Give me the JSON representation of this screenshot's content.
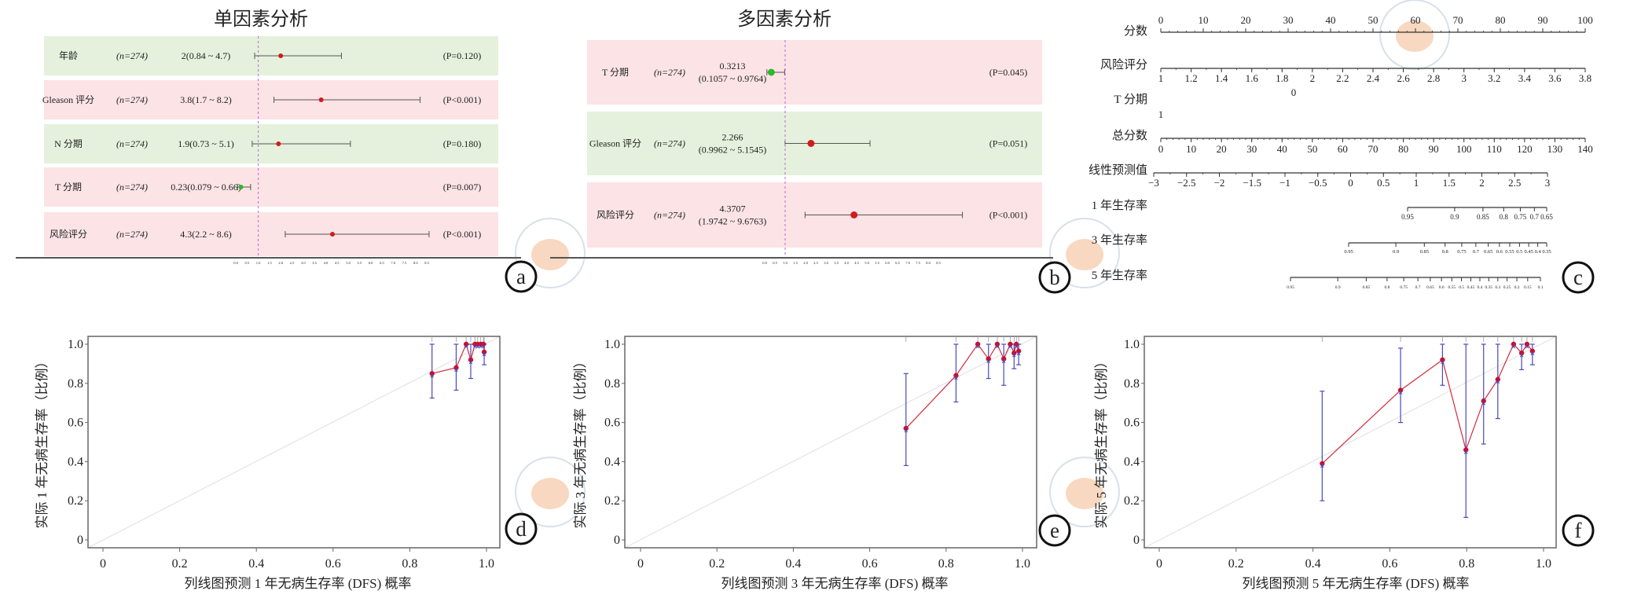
{
  "panel_labels": [
    "a",
    "b",
    "c",
    "d",
    "e",
    "f"
  ],
  "chart_data": [
    {
      "type": "forest",
      "id": "a",
      "title": "单因素分析",
      "reference": 1,
      "axis_ticks": [
        "0.0",
        "0.5",
        "1.0",
        "1.5",
        "2.0",
        "2.5",
        "3.0",
        "3.5",
        "4.0",
        "4.5",
        "5.0",
        "5.5",
        "6.0",
        "6.5",
        "7.0",
        "7.5",
        "8.0",
        "8.5"
      ],
      "rows": [
        {
          "label": "年龄",
          "n": "(n=274)",
          "estimate": "2(0.84 ~ 4.7)",
          "est": 2,
          "lo": 0.84,
          "hi": 4.7,
          "p": "(P=0.120)",
          "band": "#e5f1dc",
          "marker": "#d01c1c"
        },
        {
          "label": "Gleason 评分",
          "n": "(n=274)",
          "estimate": "3.8(1.7 ~ 8.2)",
          "est": 3.8,
          "lo": 1.7,
          "hi": 8.2,
          "p": "(P<0.001)",
          "band": "#fce3e5",
          "marker": "#d01c1c"
        },
        {
          "label": "N 分期",
          "n": "(n=274)",
          "estimate": "1.9(0.73 ~ 5.1)",
          "est": 1.9,
          "lo": 0.73,
          "hi": 5.1,
          "p": "(P=0.180)",
          "band": "#e5f1dc",
          "marker": "#d01c1c"
        },
        {
          "label": "T 分期",
          "n": "(n=274)",
          "estimate": "0.23(0.079 ~ 0.66)",
          "est": 0.23,
          "lo": 0.079,
          "hi": 0.66,
          "p": "(P=0.007)",
          "band": "#fce3e5",
          "marker": "#2db82d"
        },
        {
          "label": "风险评分",
          "n": "(n=274)",
          "estimate": "4.3(2.2 ~ 8.6)",
          "est": 4.3,
          "lo": 2.2,
          "hi": 8.6,
          "p": "(P<0.001)",
          "band": "#fce3e5",
          "marker": "#d01c1c"
        }
      ]
    },
    {
      "type": "forest",
      "id": "b",
      "title": "多因素分析",
      "reference": 1,
      "axis_ticks": [
        "0.0",
        "0.5",
        "1.0",
        "1.5",
        "2.0",
        "2.5",
        "3.0",
        "3.5",
        "4.0",
        "4.5",
        "5.0",
        "5.5",
        "6.0",
        "6.5",
        "7.0",
        "7.5",
        "8.0",
        "8.5"
      ],
      "rows": [
        {
          "label": "T 分期",
          "n": "(n=274)",
          "estimate": "0.3213",
          "ci": "(0.1057 ~ 0.9764)",
          "est": 0.3213,
          "lo": 0.1057,
          "hi": 0.9764,
          "p": "(P=0.045)",
          "band": "#fce3e5",
          "marker": "#2db82d"
        },
        {
          "label": "Gleason 评分",
          "n": "(n=274)",
          "estimate": "2.266",
          "ci": "(0.9962 ~ 5.1545)",
          "est": 2.266,
          "lo": 0.9962,
          "hi": 5.1545,
          "p": "(P=0.051)",
          "band": "#e5f1dc",
          "marker": "#d01c1c"
        },
        {
          "label": "风险评分",
          "n": "(n=274)",
          "estimate": "4.3707",
          "ci": "(1.9742 ~ 9.6763)",
          "est": 4.3707,
          "lo": 1.9742,
          "hi": 9.6763,
          "p": "(P<0.001)",
          "band": "#fce3e5",
          "marker": "#d01c1c"
        }
      ]
    },
    {
      "type": "nomogram",
      "id": "c",
      "scales": [
        {
          "label": "分数",
          "kind": "linear",
          "min": 0,
          "max": 100,
          "minor_step": 2,
          "ticks": [
            "0",
            "10",
            "20",
            "30",
            "40",
            "50",
            "60",
            "70",
            "80",
            "90",
            "100"
          ]
        },
        {
          "label": "风险评分",
          "kind": "linear",
          "min": 1,
          "max": 3.8,
          "minor_step": 0.1,
          "ticks": [
            "1",
            "1.2",
            "1.4",
            "1.6",
            "1.8",
            "2",
            "2.2",
            "2.4",
            "2.6",
            "2.8",
            "3",
            "3.2",
            "3.4",
            "3.6",
            "3.8"
          ]
        },
        {
          "label": "T 分期",
          "kind": "categorical",
          "levels": [
            {
              "label": "0",
              "points": 31.3
            },
            {
              "label": "1",
              "points": 0
            }
          ]
        },
        {
          "label": "总分数",
          "kind": "linear",
          "min": 0,
          "max": 140,
          "minor_step": 2,
          "ticks": [
            "0",
            "10",
            "20",
            "30",
            "40",
            "50",
            "60",
            "70",
            "80",
            "90",
            "100",
            "110",
            "120",
            "130",
            "140"
          ]
        },
        {
          "label": "线性预测值",
          "kind": "linear",
          "min": -3,
          "max": 3,
          "minor_step": 0.25,
          "ticks": [
            "−3",
            "−2.5",
            "−2",
            "−1.5",
            "−1",
            "−0.5",
            "0",
            "0.5",
            "1",
            "1.5",
            "2",
            "2.5",
            "3"
          ]
        },
        {
          "label": "1 年生存率",
          "kind": "survival",
          "ticks": [
            "0.95",
            "0.9",
            "0.85",
            "0.8",
            "0.75",
            "0.7",
            "0.65"
          ]
        },
        {
          "label": "3 年生存率",
          "kind": "survival",
          "ticks": [
            "0.95",
            "0.9",
            "0.85",
            "0.8",
            "0.75",
            "0.7",
            "0.65",
            "0.6",
            "0.55",
            "0.5",
            "0.45",
            "0.4",
            "0.35"
          ]
        },
        {
          "label": "5 年生存率",
          "kind": "survival",
          "ticks": [
            "0.95",
            "0.9",
            "0.85",
            "0.8",
            "0.75",
            "0.7",
            "0.65",
            "0.6",
            "0.55",
            "0.5",
            "0.45",
            "0.4",
            "0.35",
            "0.3",
            "0.25",
            "0.2",
            "0.15",
            "0.1"
          ]
        }
      ]
    },
    {
      "type": "line",
      "id": "d",
      "xlabel": "列线图预测 1 年无病生存率 (DFS) 概率",
      "ylabel": "实际 1 年无病生存率（比例）",
      "xlim": [
        0,
        1
      ],
      "ylim": [
        0,
        1
      ],
      "xticks": [
        "0",
        "0.2",
        "0.4",
        "0.6",
        "0.8",
        "1.0"
      ],
      "yticks": [
        "0",
        "0.2",
        "0.4",
        "0.6",
        "0.8",
        "1.0"
      ],
      "series_colors": {
        "observed": "#d42a3a",
        "ci": "#4a48c0",
        "ideal": "#e4e4e4"
      },
      "points": [
        {
          "x": 0.858,
          "y": 0.85,
          "lo": 0.725,
          "hi": 1.0
        },
        {
          "x": 0.921,
          "y": 0.88,
          "lo": 0.765,
          "hi": 1.0
        },
        {
          "x": 0.947,
          "y": 1.0,
          "lo": 1.0,
          "hi": 1.0
        },
        {
          "x": 0.959,
          "y": 0.92,
          "lo": 0.825,
          "hi": 1.0
        },
        {
          "x": 0.97,
          "y": 1.0,
          "lo": 1.0,
          "hi": 1.0
        },
        {
          "x": 0.977,
          "y": 1.0,
          "lo": 1.0,
          "hi": 1.0
        },
        {
          "x": 0.985,
          "y": 1.0,
          "lo": 1.0,
          "hi": 1.0
        },
        {
          "x": 0.992,
          "y": 1.0,
          "lo": 1.0,
          "hi": 1.0
        },
        {
          "x": 0.994,
          "y": 0.96,
          "lo": 0.895,
          "hi": 1.0
        }
      ]
    },
    {
      "type": "line",
      "id": "e",
      "xlabel": "列线图预测 3 年无病生存率 (DFS) 概率",
      "ylabel": "实际 3 年无病生存率（比例）",
      "xlim": [
        0,
        1
      ],
      "ylim": [
        0,
        1
      ],
      "xticks": [
        "0",
        "0.2",
        "0.4",
        "0.6",
        "0.8",
        "1.0"
      ],
      "yticks": [
        "0",
        "0.2",
        "0.4",
        "0.6",
        "0.8",
        "1.0"
      ],
      "series_colors": {
        "observed": "#d42a3a",
        "ci": "#4a48c0",
        "ideal": "#e4e4e4"
      },
      "points": [
        {
          "x": 0.695,
          "y": 0.57,
          "lo": 0.38,
          "hi": 0.85
        },
        {
          "x": 0.826,
          "y": 0.84,
          "lo": 0.705,
          "hi": 1.0
        },
        {
          "x": 0.883,
          "y": 1.0,
          "lo": 1.0,
          "hi": 1.0
        },
        {
          "x": 0.911,
          "y": 0.925,
          "lo": 0.825,
          "hi": 1.0
        },
        {
          "x": 0.934,
          "y": 1.0,
          "lo": 1.0,
          "hi": 1.0
        },
        {
          "x": 0.951,
          "y": 0.925,
          "lo": 0.79,
          "hi": 1.0
        },
        {
          "x": 0.968,
          "y": 1.0,
          "lo": 1.0,
          "hi": 1.0
        },
        {
          "x": 0.978,
          "y": 0.955,
          "lo": 0.875,
          "hi": 1.0
        },
        {
          "x": 0.984,
          "y": 1.0,
          "lo": 1.0,
          "hi": 1.0
        },
        {
          "x": 0.99,
          "y": 0.965,
          "lo": 0.895,
          "hi": 1.0
        }
      ]
    },
    {
      "type": "line",
      "id": "f",
      "xlabel": "列线图预测 5 年无病生存率 (DFS) 概率",
      "ylabel": "实际 5 年无病生存率（比例）",
      "xlim": [
        0,
        1
      ],
      "ylim": [
        0,
        1
      ],
      "xticks": [
        "0",
        "0.2",
        "0.4",
        "0.6",
        "0.8",
        "1.0"
      ],
      "yticks": [
        "0",
        "0.2",
        "0.4",
        "0.6",
        "0.8",
        "1.0"
      ],
      "series_colors": {
        "observed": "#d42a3a",
        "ci": "#4a48c0",
        "ideal": "#e4e4e4"
      },
      "points": [
        {
          "x": 0.424,
          "y": 0.39,
          "lo": 0.2,
          "hi": 0.76
        },
        {
          "x": 0.628,
          "y": 0.765,
          "lo": 0.6,
          "hi": 0.98
        },
        {
          "x": 0.737,
          "y": 0.92,
          "lo": 0.79,
          "hi": 1.0
        },
        {
          "x": 0.798,
          "y": 0.46,
          "lo": 0.115,
          "hi": 1.0
        },
        {
          "x": 0.844,
          "y": 0.71,
          "lo": 0.49,
          "hi": 1.0
        },
        {
          "x": 0.881,
          "y": 0.82,
          "lo": 0.62,
          "hi": 1.0
        },
        {
          "x": 0.922,
          "y": 1.0,
          "lo": 1.0,
          "hi": 1.0
        },
        {
          "x": 0.943,
          "y": 0.955,
          "lo": 0.87,
          "hi": 1.0
        },
        {
          "x": 0.957,
          "y": 1.0,
          "lo": 1.0,
          "hi": 1.0
        },
        {
          "x": 0.971,
          "y": 0.965,
          "lo": 0.895,
          "hi": 1.0
        }
      ]
    }
  ]
}
